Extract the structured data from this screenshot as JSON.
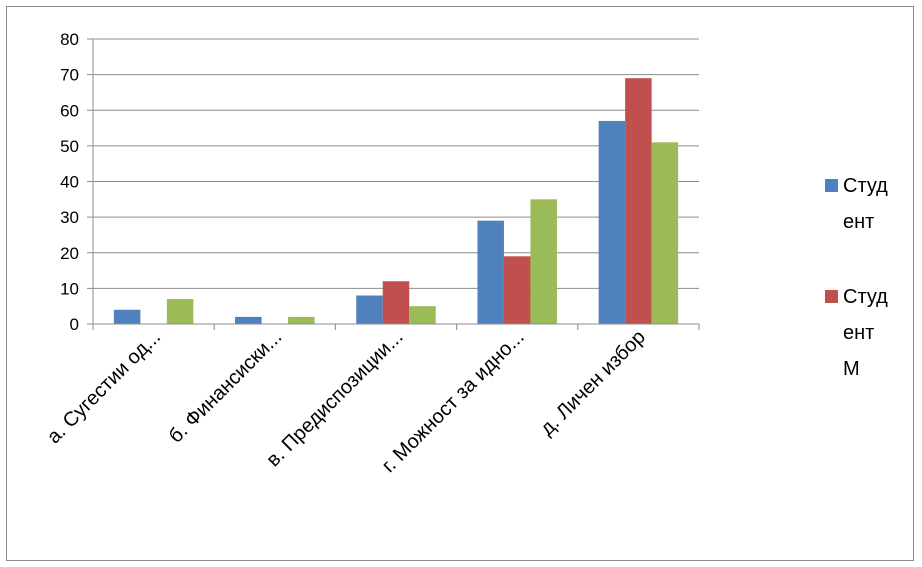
{
  "chart_data": {
    "type": "bar",
    "categories": [
      "а. Сугестии од...",
      "б. Финансиски...",
      "в. Предиспозиции...",
      "г. Можност за идно...",
      "д. Личен избор"
    ],
    "series": [
      {
        "name": "Студент",
        "color": "#4f81bd",
        "values": [
          4,
          2,
          8,
          29,
          57
        ]
      },
      {
        "name": "Студент М",
        "color": "#c0504d",
        "values": [
          0,
          0,
          12,
          19,
          69
        ]
      },
      {
        "name": "",
        "color": "#9bbb59",
        "values": [
          7,
          2,
          5,
          35,
          51
        ]
      }
    ],
    "ylim": [
      0,
      80
    ],
    "yticks": [
      0,
      10,
      20,
      30,
      40,
      50,
      60,
      70,
      80
    ],
    "grid": true,
    "legend": {
      "position": "right",
      "entries": [
        {
          "lines": [
            "Студ",
            "ент"
          ],
          "color": "#4f81bd"
        },
        {
          "lines": [
            "Студ",
            "ент",
            "М"
          ],
          "color": "#c0504d"
        }
      ]
    },
    "title": "",
    "xlabel": "",
    "ylabel": ""
  }
}
